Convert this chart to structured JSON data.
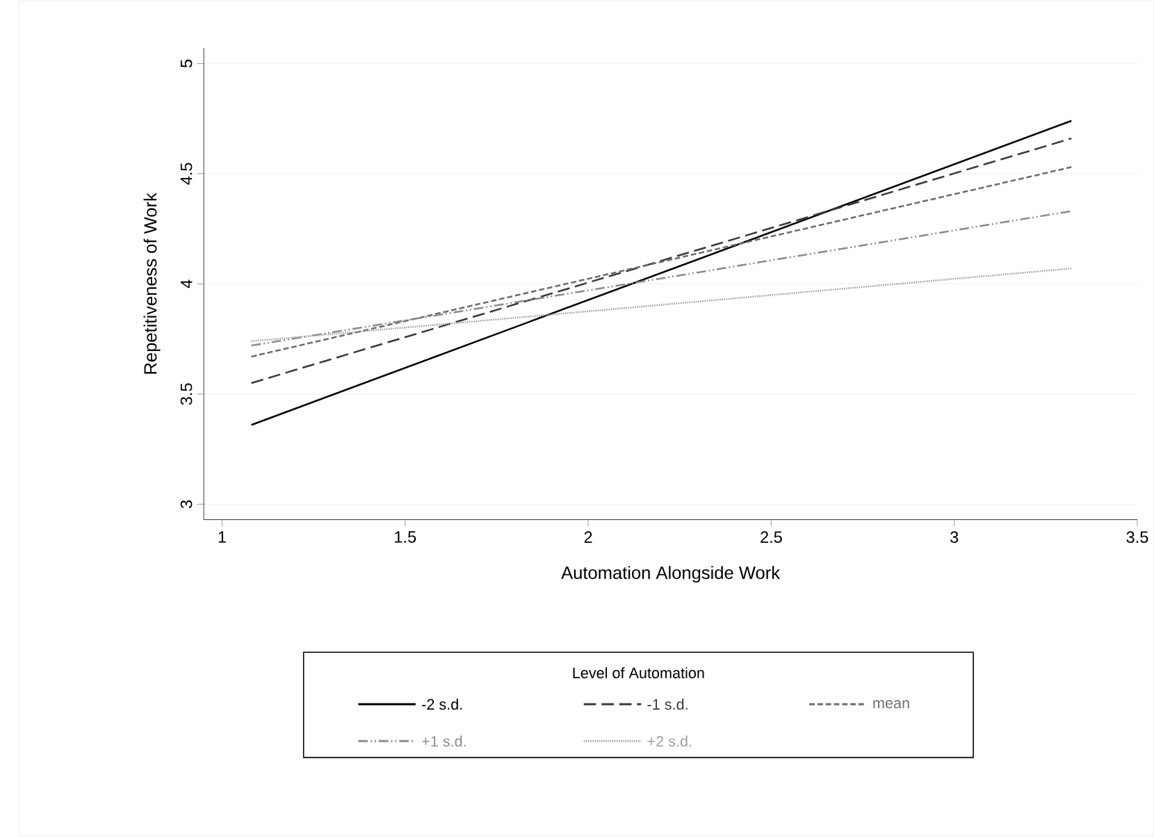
{
  "chart_data": {
    "type": "line",
    "xlabel": "Automation Alongside Work",
    "ylabel": "Repetitiveness of Work",
    "legend_title": "Level of Automation",
    "x": [
      1.08,
      3.32
    ],
    "series": [
      {
        "name": "-2 s.d.",
        "color": "#000000",
        "line_style": "solid",
        "values": [
          3.36,
          4.74
        ]
      },
      {
        "name": "-1 s.d.",
        "color": "#3a3a3a",
        "line_style": "dashed",
        "values": [
          3.55,
          4.66
        ]
      },
      {
        "name": "mean",
        "color": "#6e6e6e",
        "line_style": "densely dashed",
        "values": [
          3.67,
          4.53
        ]
      },
      {
        "name": "+1 s.d.",
        "color": "#8c8c8c",
        "line_style": "dashdotdot",
        "values": [
          3.72,
          4.33
        ]
      },
      {
        "name": "+2 s.d.",
        "color": "#a0a0a0",
        "line_style": "dotted",
        "values": [
          3.74,
          4.07
        ]
      }
    ],
    "xlim": [
      0.95,
      3.5
    ],
    "ylim": [
      2.93,
      5.07
    ],
    "xticks": [
      1,
      1.5,
      2,
      2.5,
      3,
      3.5
    ],
    "yticks": [
      3,
      3.5,
      4,
      4.5,
      5
    ],
    "grid": "y",
    "legend": "bottom",
    "marker": "none"
  }
}
